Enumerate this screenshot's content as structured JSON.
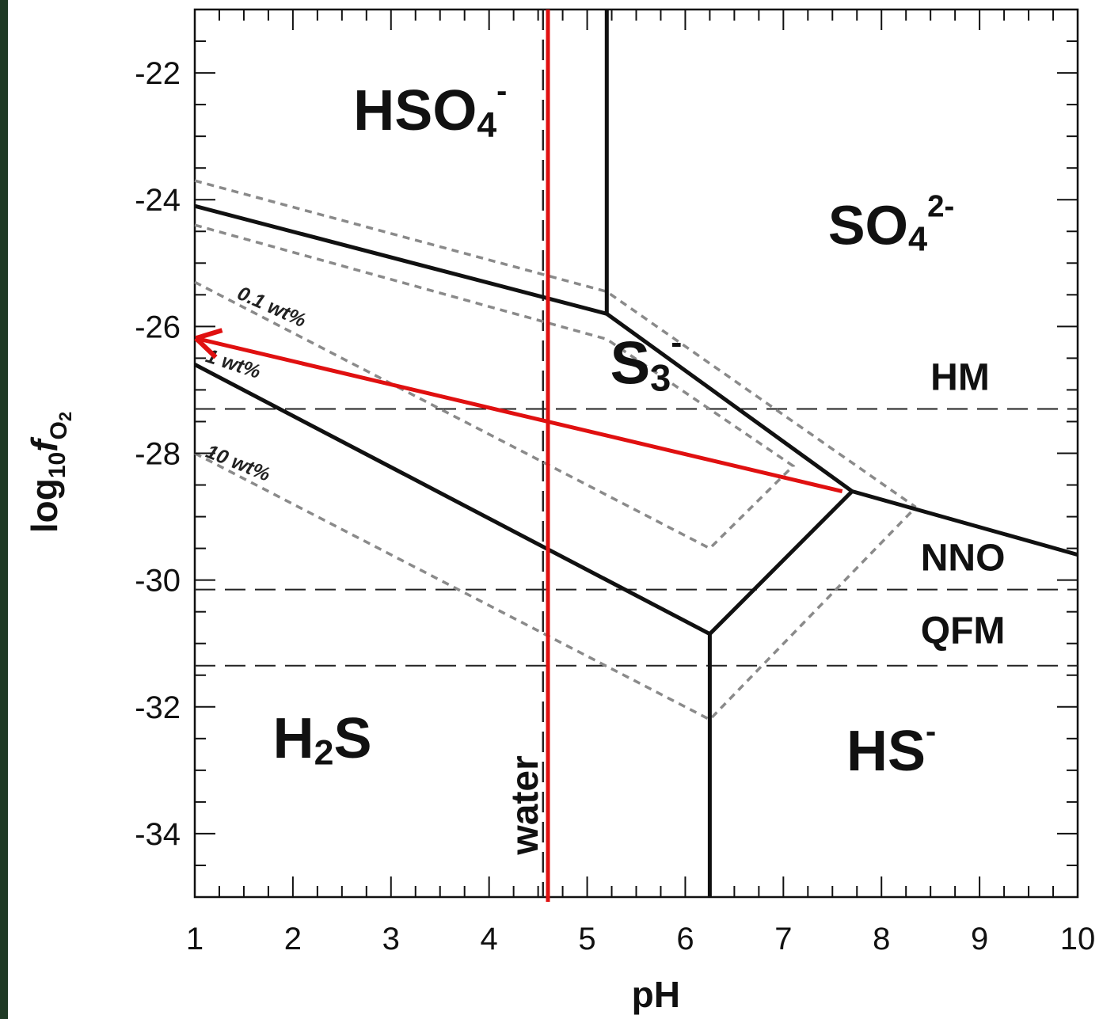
{
  "chart_data": {
    "type": "diagram",
    "xlabel": "pH",
    "ylabel": "log10 fO2",
    "xlim": [
      1,
      10
    ],
    "ylim": [
      -35,
      -21
    ],
    "x_ticks": [
      "1",
      "2",
      "3",
      "4",
      "5",
      "6",
      "7",
      "8",
      "9",
      "10"
    ],
    "y_ticks": [
      {
        "value": -22,
        "label": "-22"
      },
      {
        "value": -24,
        "label": "-24"
      },
      {
        "value": -26,
        "label": "-26"
      },
      {
        "value": -28,
        "label": "-28"
      },
      {
        "value": -30,
        "label": "-30"
      },
      {
        "value": -32,
        "label": "-32"
      },
      {
        "value": -34,
        "label": "-34"
      }
    ],
    "fields": [
      {
        "id": "hso4",
        "main": "HSO",
        "sub": "4",
        "sup": "-",
        "x": 3.4,
        "y": -22.9,
        "size": 72
      },
      {
        "id": "so4",
        "main": "SO",
        "sub": "4",
        "sup": "2-",
        "x": 8.1,
        "y": -24.7,
        "size": 70
      },
      {
        "id": "s3",
        "main": "S",
        "sub": "3",
        "sup": "-",
        "x": 5.6,
        "y": -26.9,
        "size": 76
      },
      {
        "id": "h2s",
        "main": "H",
        "sub": "2",
        "sup": "",
        "after": "S",
        "x": 2.3,
        "y": -32.8,
        "size": 72
      },
      {
        "id": "hs",
        "main": "HS",
        "sub": "",
        "sup": "-",
        "x": 8.1,
        "y": -33.0,
        "size": 72
      }
    ],
    "buffers": [
      {
        "name": "HM",
        "y": -27.3,
        "label_x": 8.5,
        "label_y": -27.0
      },
      {
        "name": "NNO",
        "y": -30.15,
        "label_x": 8.4,
        "label_y": -29.85
      },
      {
        "name": "QFM",
        "y": -31.35,
        "label_x": 8.4,
        "label_y": -31.0
      }
    ],
    "water": {
      "label": "water",
      "x": 4.55
    },
    "solid_boundaries": [
      [
        [
          1,
          -24.1
        ],
        [
          5.2,
          -25.8
        ],
        [
          7.7,
          -28.6
        ],
        [
          10,
          -29.6
        ]
      ],
      [
        [
          5.2,
          -25.8
        ],
        [
          5.2,
          -21
        ]
      ],
      [
        [
          1,
          -26.6
        ],
        [
          6.25,
          -30.85
        ],
        [
          7.7,
          -28.6
        ]
      ],
      [
        [
          6.25,
          -30.85
        ],
        [
          6.25,
          -35
        ]
      ]
    ],
    "dashed_boundaries": [
      [
        [
          1,
          -23.7
        ],
        [
          5.2,
          -25.45
        ],
        [
          8.35,
          -28.85
        ]
      ],
      [
        [
          1,
          -24.4
        ],
        [
          5.2,
          -26.2
        ],
        [
          7.1,
          -28.2
        ],
        [
          6.25,
          -29.5
        ],
        [
          1,
          -25.3
        ]
      ],
      [
        [
          1,
          -28.0
        ],
        [
          6.25,
          -32.2
        ],
        [
          8.35,
          -28.85
        ]
      ]
    ],
    "iso_labels": [
      {
        "text": "0.1 wt%",
        "x": 1.42,
        "y": -25.55,
        "angle": 24
      },
      {
        "text": "1 wt%",
        "x": 1.1,
        "y": -26.55,
        "angle": 18
      },
      {
        "text": "10 wt%",
        "x": 1.1,
        "y": -28.05,
        "angle": 22
      }
    ],
    "red_line_x": 4.6,
    "red_arrow": {
      "from": [
        7.6,
        -28.6
      ],
      "to": [
        1.05,
        -26.2
      ]
    }
  }
}
